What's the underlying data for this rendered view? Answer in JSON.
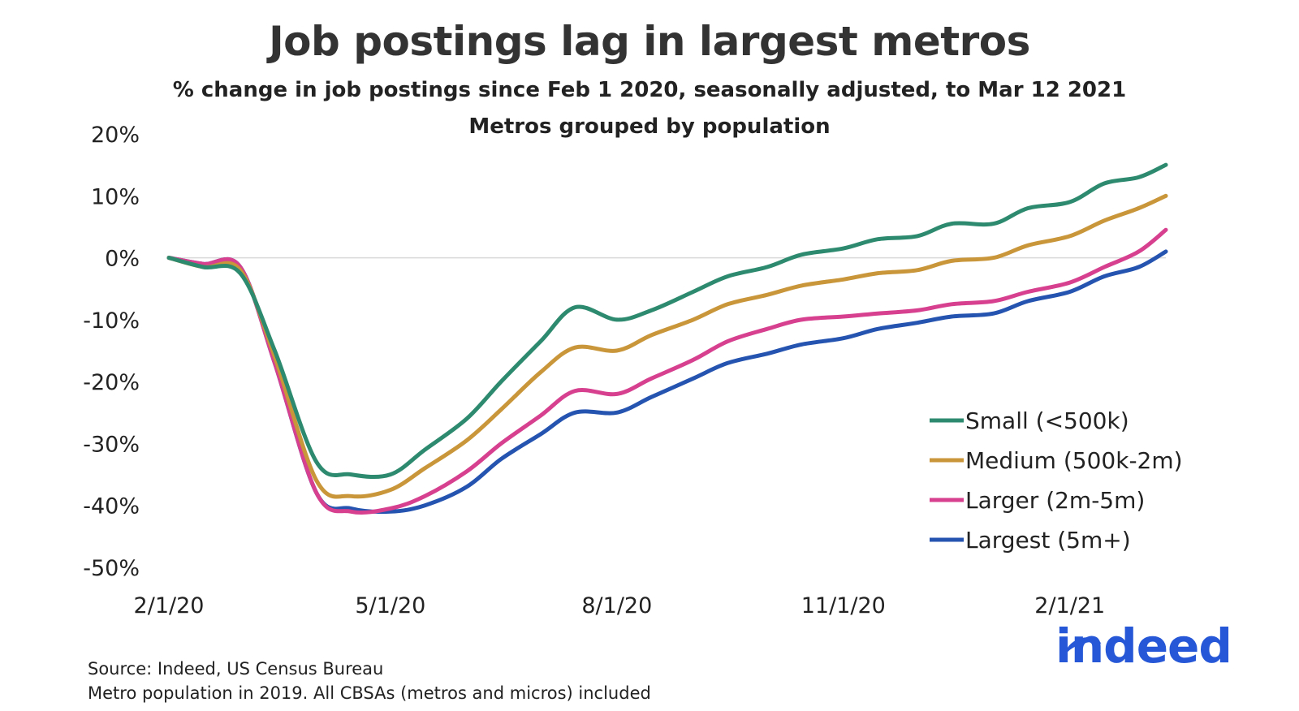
{
  "header": {
    "title": "Job postings lag in largest metros",
    "subtitle1": "% change in job postings since Feb 1 2020, seasonally adjusted, to Mar 12 2021",
    "subtitle2": "Metros grouped by population"
  },
  "footer": {
    "source": "Source: Indeed, US Census Bureau",
    "note": "Metro population in 2019. All CBSAs (metros and micros) included"
  },
  "logo": {
    "text": "indeed",
    "color": "#2557d6"
  },
  "chart_data": {
    "type": "line",
    "title": "Job postings lag in largest metros",
    "subtitle": "% change in job postings since Feb 1 2020, seasonally adjusted, to Mar 12 2021",
    "xlabel": "",
    "ylabel": "",
    "x_ticks": [
      "2/1/20",
      "5/1/20",
      "8/1/20",
      "11/1/20",
      "2/1/21"
    ],
    "x_tick_dates": [
      "2020-02-01",
      "2020-05-01",
      "2020-08-01",
      "2020-11-01",
      "2021-02-01"
    ],
    "x_range": [
      "2020-02-01",
      "2021-03-12"
    ],
    "y_ticks": [
      20,
      10,
      0,
      -10,
      -20,
      -30,
      -40,
      -50
    ],
    "y_tick_labels": [
      "20%",
      "10%",
      "0%",
      "-10%",
      "-20%",
      "-30%",
      "-40%",
      "-50%"
    ],
    "ylim": [
      -50,
      20
    ],
    "grid": false,
    "zero_line": true,
    "legend_position": "bottom-right",
    "x": [
      "2020-02-01",
      "2020-02-15",
      "2020-03-01",
      "2020-03-15",
      "2020-04-01",
      "2020-04-15",
      "2020-05-01",
      "2020-05-15",
      "2020-06-01",
      "2020-06-15",
      "2020-07-01",
      "2020-07-15",
      "2020-08-01",
      "2020-08-15",
      "2020-09-01",
      "2020-09-15",
      "2020-10-01",
      "2020-10-15",
      "2020-11-01",
      "2020-11-15",
      "2020-12-01",
      "2020-12-15",
      "2021-01-01",
      "2021-01-15",
      "2021-02-01",
      "2021-02-15",
      "2021-03-01",
      "2021-03-12"
    ],
    "series": [
      {
        "name": "Small (<500k)",
        "color": "#2e8a6e",
        "values": [
          0,
          -1.5,
          -2.5,
          -15,
          -33,
          -35,
          -35,
          -31,
          -26,
          -20,
          -13.5,
          -8,
          -10,
          -8.5,
          -5.5,
          -3,
          -1.5,
          0.5,
          1.5,
          3,
          3.5,
          5.5,
          5.5,
          8,
          9,
          12,
          13,
          15
        ]
      },
      {
        "name": "Medium (500k-2m)",
        "color": "#c9963a",
        "values": [
          0,
          -1.5,
          -2,
          -16,
          -36,
          -38.5,
          -37.5,
          -34,
          -29.5,
          -24.5,
          -18.5,
          -14.5,
          -15,
          -12.5,
          -10,
          -7.5,
          -6,
          -4.5,
          -3.5,
          -2.5,
          -2,
          -0.5,
          0,
          2,
          3.5,
          6,
          8,
          10
        ]
      },
      {
        "name": "Larger (2m-5m)",
        "color": "#d6408f",
        "values": [
          0,
          -1,
          -1.5,
          -17,
          -38,
          -41,
          -40.5,
          -38.5,
          -34.5,
          -30,
          -25.5,
          -21.5,
          -22,
          -19.5,
          -16.5,
          -13.5,
          -11.5,
          -10,
          -9.5,
          -9,
          -8.5,
          -7.5,
          -7,
          -5.5,
          -4,
          -1.5,
          1,
          4.5
        ]
      },
      {
        "name": "Largest (5m+)",
        "color": "#2453b0",
        "values": [
          0,
          -1,
          -1.5,
          -17,
          -38,
          -40.5,
          -41,
          -40,
          -37,
          -32.5,
          -28.5,
          -25,
          -25,
          -22.5,
          -19.5,
          -17,
          -15.5,
          -14,
          -13,
          -11.5,
          -10.5,
          -9.5,
          -9,
          -7,
          -5.5,
          -3,
          -1.5,
          1
        ]
      }
    ]
  }
}
